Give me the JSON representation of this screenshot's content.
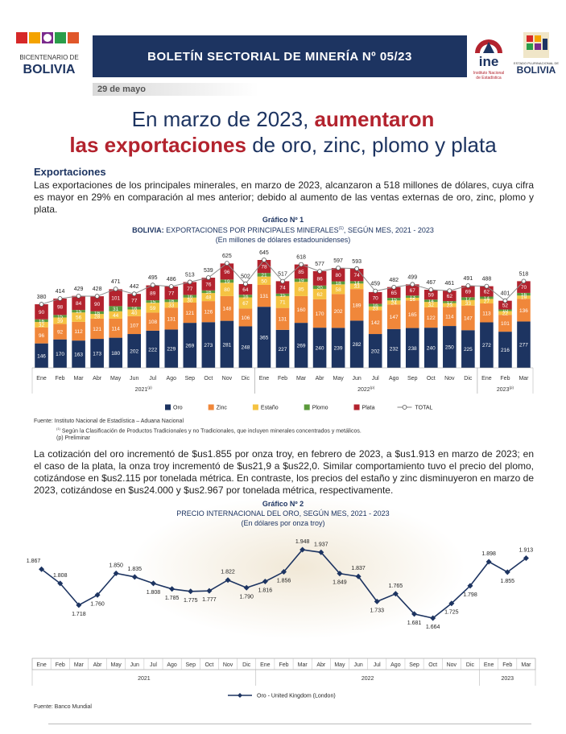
{
  "header": {
    "logo_left": [
      "BICENTENARIO DE",
      "BOLIVIA"
    ],
    "title": "BOLETÍN SECTORIAL DE MINERÍA Nº 05/23",
    "ine_logo": [
      "ine",
      "Instituto Nacional",
      "de Estadística"
    ],
    "logo_right": [
      "ESTADO PLURINACIONAL DE",
      "BOLIVIA"
    ],
    "date": "29 de mayo"
  },
  "headline": [
    "En marzo de 2023, ",
    "aumentaron",
    "las exportaciones",
    " de oro, zinc, plomo y plata"
  ],
  "section": "Exportaciones",
  "paragraph1": "Las exportaciones de los principales minerales, en marzo de 2023, alcanzaron a 518 millones de dólares, cuya cifra es mayor en 29% en comparación al mes anterior; debido al aumento de las ventas externas de oro, zinc, plomo y plata.",
  "notes1": [
    "Fuente: Instituto Nacional de Estadística – Aduana Nacional",
    "(1)",
    " Según la Clasificación de Productos Tradicionales y no Tradicionales, que incluyen minerales concentrados y metálicos.",
    "(p) Preliminar"
  ],
  "paragraph2": "La cotización del oro incrementó de $us1.855 por onza troy, en febrero de 2023, a $us1.913 en marzo de 2023; en el caso de la plata, la onza troy incrementó de $us21,9 a $us22,0. Similar comportamiento tuvo el precio del plomo, cotizándose en $us2.115 por tonelada métrica. En contraste, los precios del estaño y zinc disminuyeron en marzo de 2023, cotizándose en $us24.000 y $us2.967 por tonelada métrica, respectivamente.",
  "notes2": "Fuente: Banco Mundial",
  "chart_data": [
    {
      "type": "bar",
      "stacked": true,
      "title": "Gráfico Nº 1",
      "subtitle": [
        "BOLIVIA:",
        " EXPORTACIONES POR PRINCIPALES MINERALES",
        "(1)",
        ", SEGÚN MES, 2021 - 2023"
      ],
      "units": "(En millones de dólares estadounidenses)",
      "categories": [
        "Ene",
        "Feb",
        "Mar",
        "Abr",
        "May",
        "Jun",
        "Jul",
        "Ago",
        "Sep",
        "Oct",
        "Nov",
        "Dic",
        "Ene",
        "Feb",
        "Mar",
        "Abr",
        "May",
        "Jun",
        "Jul",
        "Ago",
        "Sep",
        "Oct",
        "Nov",
        "Dic",
        "Ene",
        "Feb",
        "Mar"
      ],
      "years": [
        {
          "label": "2021",
          "note": "(p)"
        },
        {
          "label": "2022",
          "note": "(p)"
        },
        {
          "label": "2023",
          "note": "(p)"
        }
      ],
      "series": [
        {
          "name": "Oro",
          "color": "#1d3461",
          "values": [
            146,
            170,
            163,
            173,
            180,
            202,
            222,
            229,
            269,
            273,
            281,
            248,
            365,
            227,
            269,
            240,
            239,
            282,
            202,
            232,
            238,
            240,
            250,
            225,
            272,
            216,
            277
          ]
        },
        {
          "name": "Zinc",
          "color": "#f0873a",
          "values": [
            96,
            92,
            112,
            121,
            114,
            107,
            108,
            131,
            121,
            126,
            148,
            106,
            131,
            131,
            160,
            170,
            202,
            189,
            142,
            147,
            165,
            122,
            114,
            147,
            113,
            101,
            136
          ]
        },
        {
          "name": "Estaño",
          "color": "#f5c342",
          "values": [
            32,
            39,
            56,
            28,
            44,
            40,
            59,
            33,
            30,
            48,
            80,
            67,
            50,
            71,
            85,
            62,
            58,
            33,
            23,
            24,
            16,
            32,
            23,
            33,
            27,
            22,
            19
          ]
        },
        {
          "name": "Plomo",
          "color": "#5b9a3c",
          "values": [
            16,
            15,
            15,
            16,
            31,
            16,
            15,
            16,
            16,
            16,
            19,
            16,
            21,
            15,
            19,
            20,
            18,
            14,
            16,
            15,
            13,
            14,
            12,
            17,
            14,
            10,
            16
          ]
        },
        {
          "name": "Plata",
          "color": "#b3232e",
          "values": [
            90,
            98,
            84,
            90,
            101,
            77,
            89,
            77,
            77,
            76,
            96,
            64,
            78,
            74,
            85,
            86,
            80,
            74,
            70,
            65,
            67,
            59,
            62,
            69,
            62,
            52,
            70
          ]
        }
      ],
      "total": {
        "name": "TOTAL",
        "color": "#8c8c8c",
        "values": [
          380,
          414,
          429,
          428,
          471,
          442,
          495,
          486,
          513,
          539,
          625,
          502,
          645,
          517,
          618,
          577,
          597,
          593,
          459,
          482,
          499,
          467,
          461,
          491,
          488,
          401,
          518
        ]
      },
      "legend": "bottom"
    },
    {
      "type": "line",
      "title": "Gráfico Nº 2",
      "subtitle": "PRECIO INTERNACIONAL DEL ORO, SEGÚN MES, 2021 - 2023",
      "units": "(En dólares por onza troy)",
      "categories": [
        "Ene",
        "Feb",
        "Mar",
        "Abr",
        "May",
        "Jun",
        "Jul",
        "Ago",
        "Sep",
        "Oct",
        "Nov",
        "Dic",
        "Ene",
        "Feb",
        "Mar",
        "Abr",
        "May",
        "Jun",
        "Jul",
        "Ago",
        "Sep",
        "Oct",
        "Nov",
        "Dic",
        "Ene",
        "Feb",
        "Mar"
      ],
      "years": [
        "2021",
        "2022",
        "2023"
      ],
      "series": [
        {
          "name": "Oro - United Kingdom (London)",
          "color": "#1d3461",
          "values": [
            1867,
            1808,
            1718,
            1760,
            1850,
            1835,
            1808,
            1785,
            1775,
            1777,
            1822,
            1790,
            1816,
            1856,
            1948,
            1937,
            1849,
            1837,
            1733,
            1765,
            1681,
            1664,
            1725,
            1798,
            1898,
            1855,
            1913
          ],
          "value_labels": [
            "1.867",
            "1.808",
            "1.718",
            "1.760",
            "1.850",
            "1.835",
            "1.808",
            "1.785",
            "1.775",
            "1.777",
            "1.822",
            "1.790",
            "1.816",
            "1.856",
            "1.948",
            "1.937",
            "1.849",
            "1.837",
            "1.733",
            "1.765",
            "1.681",
            "1.664",
            "1.725",
            "1.798",
            "1.898",
            "1.855",
            "1.913"
          ]
        }
      ],
      "legend": "bottom"
    }
  ]
}
